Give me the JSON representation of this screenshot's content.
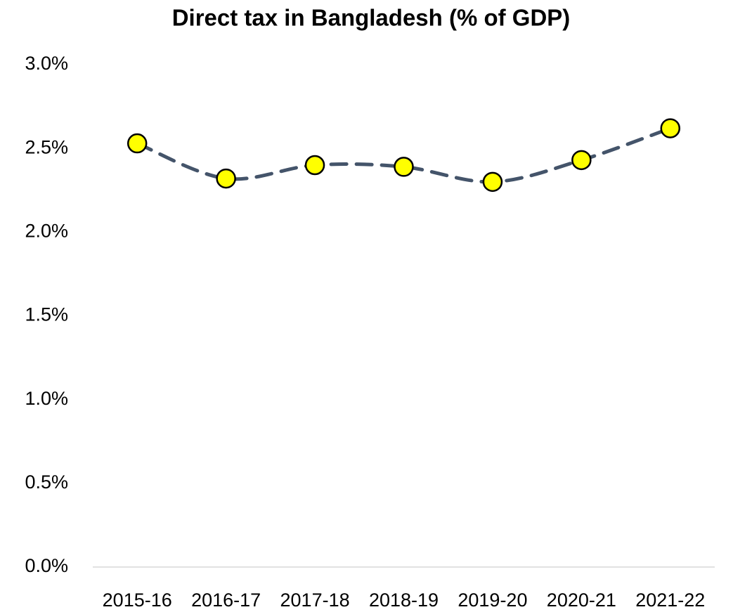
{
  "chart_data": {
    "type": "line",
    "title": "Direct tax in Bangladesh (% of GDP)",
    "categories": [
      "2015-16",
      "2016-17",
      "2017-18",
      "2018-19",
      "2019-20",
      "2020-21",
      "2021-22"
    ],
    "series": [
      {
        "color": "#44546a",
        "marker_color": "#ffff00",
        "line_style": "dashed",
        "values": [
          2.53,
          2.32,
          2.4,
          2.39,
          2.3,
          2.43,
          2.62
        ]
      }
    ],
    "ylim": [
      0,
      3
    ],
    "yticks": [
      {
        "value": 0,
        "label": "0.0%"
      },
      {
        "value": 0.5,
        "label": "0.5%"
      },
      {
        "value": 1,
        "label": "1.0%"
      },
      {
        "value": 1.5,
        "label": "1.5%"
      },
      {
        "value": 2,
        "label": "2.0%"
      },
      {
        "value": 2.5,
        "label": "2.5%"
      },
      {
        "value": 3,
        "label": "3.0%"
      }
    ],
    "grid": false
  }
}
